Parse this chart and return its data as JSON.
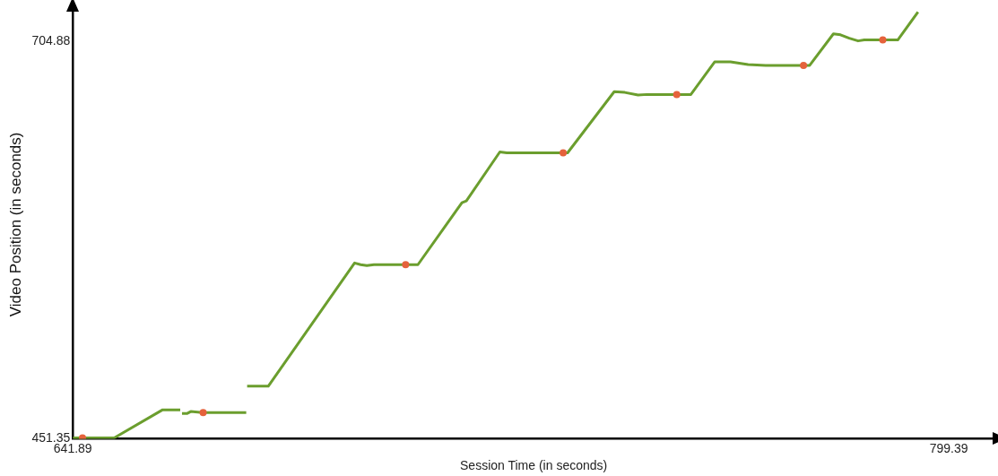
{
  "chart_data": {
    "type": "line",
    "xlabel": "Session Time (in seconds)",
    "ylabel": "Video Position (in seconds)",
    "xlim": [
      641.89,
      807.6
    ],
    "ylim": [
      451.35,
      725
    ],
    "xticks": [
      641.89,
      799.39
    ],
    "yticks": [
      451.35,
      704.88
    ],
    "grid": false,
    "legend": false,
    "line_style": "solid",
    "series": [
      {
        "color": "#6b9e2e",
        "marker": "none",
        "x": [
          641.89,
          649.33,
          658.04,
          661.2,
          661.36,
          661.52,
          662.47,
          663.1,
          665.16,
          673.07,
          673.15,
          673.23,
          677.03,
          692.55,
          693.65,
          694.76,
          696.03,
          703.94,
          711.86,
          712.65,
          718.67,
          719.93,
          730.85,
          739.24,
          741.14,
          743.52,
          745.1,
          753.02,
          757.29,
          760.14,
          763.3,
          766.47,
          774.38,
          778.65,
          779.92,
          781.5,
          783.09,
          784.2,
          790.22,
          793.86
        ],
        "values": [
          451.9,
          451.9,
          469.8,
          469.8,
          null,
          467.5,
          467.5,
          468.7,
          468.1,
          468.1,
          null,
          484.9,
          484.9,
          563.6,
          562.5,
          561.9,
          562.5,
          562.5,
          602.1,
          603.2,
          634.5,
          633.9,
          633.9,
          673.0,
          672.5,
          670.8,
          671.2,
          671.2,
          692.0,
          692.0,
          690.3,
          689.8,
          689.8,
          709.9,
          709.3,
          707.1,
          705.4,
          706.0,
          706.0,
          723.9
        ]
      },
      {
        "type": "scatter",
        "color": "#e5623c",
        "marker": "circle",
        "x": [
          643.63,
          665.32,
          701.73,
          730.06,
          750.48,
          773.28,
          787.53
        ],
        "values": [
          451.9,
          468.1,
          562.5,
          633.9,
          671.2,
          689.8,
          706.0
        ]
      }
    ]
  }
}
